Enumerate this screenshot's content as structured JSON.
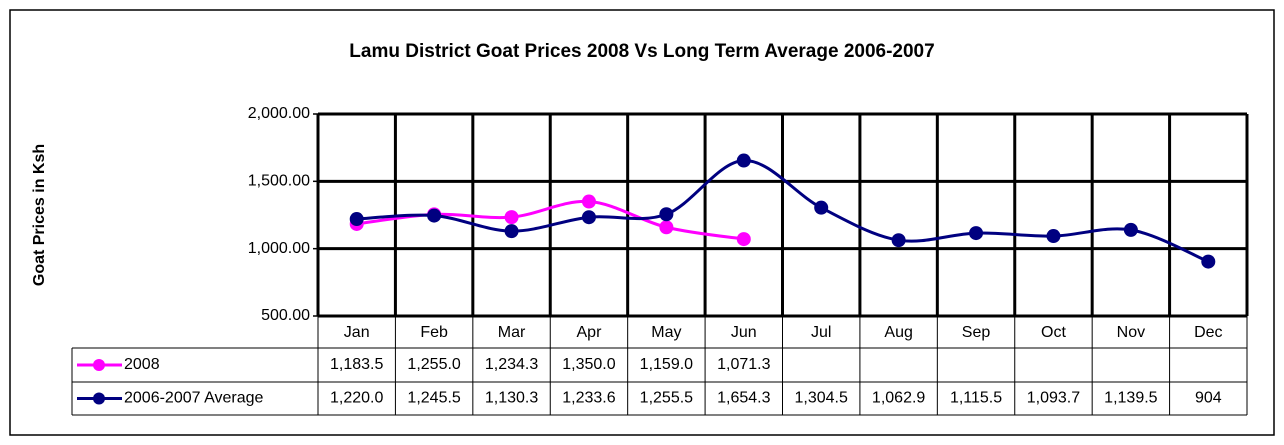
{
  "chart_data": {
    "type": "line",
    "title": "Lamu District Goat Prices 2008 Vs Long Term Average 2006-2007",
    "y_label": "Goat Prices in Ksh",
    "categories": [
      "Jan",
      "Feb",
      "Mar",
      "Apr",
      "May",
      "Jun",
      "Jul",
      "Aug",
      "Sep",
      "Oct",
      "Nov",
      "Dec"
    ],
    "series": [
      {
        "name": "2008",
        "color": "#ff00ff",
        "values": [
          1183.5,
          1255.0,
          1234.3,
          1350.0,
          1159.0,
          1071.3,
          null,
          null,
          null,
          null,
          null,
          null
        ],
        "value_labels": [
          "1,183.5",
          "1,255.0",
          "1,234.3",
          "1,350.0",
          "1,159.0",
          "1,071.3",
          null,
          null,
          null,
          null,
          null,
          null
        ]
      },
      {
        "name": "2006-2007 Average",
        "color": "#000080",
        "values": [
          1220.0,
          1245.5,
          1130.3,
          1233.6,
          1255.5,
          1654.3,
          1304.5,
          1062.9,
          1115.5,
          1093.7,
          1139.5,
          904
        ],
        "value_labels": [
          "1,220.0",
          "1,245.5",
          "1,130.3",
          "1,233.6",
          "1,255.5",
          "1,654.3",
          "1,304.5",
          "1,062.9",
          "1,115.5",
          "1,093.7",
          "1,139.5",
          "904"
        ]
      }
    ],
    "ylim": [
      500,
      2000
    ],
    "yticks": [
      {
        "value": 500,
        "label": "500.00"
      },
      {
        "value": 1000,
        "label": "1,000.00"
      },
      {
        "value": 1500,
        "label": "1,500.00"
      },
      {
        "value": 2000,
        "label": "2,000.00"
      }
    ],
    "grid": true,
    "smooth": true
  }
}
